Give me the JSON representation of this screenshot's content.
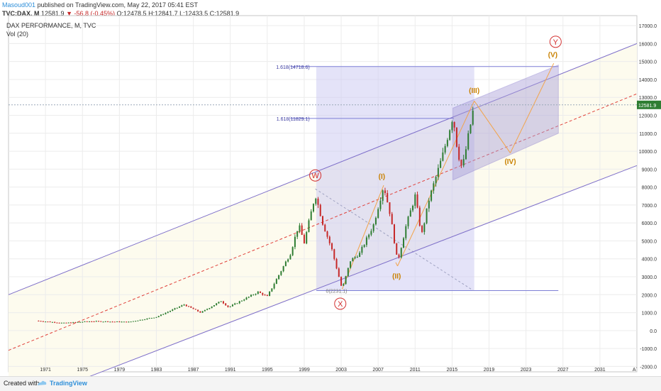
{
  "header": {
    "author": "Masoud001",
    "published": "published on TradingView.com, May 22, 2017 05:41 EST",
    "symbol": "TVC:DAX, M",
    "last": "12581.9",
    "change": "▼ -56.8 (-0.45%)",
    "ohlc": "O:12478.5  H:12841.7  L:12433.5  C:12581.9"
  },
  "legend": {
    "title": "DAX PERFORMANCE, M, TVC",
    "indicator": "Vol (20)"
  },
  "footer": {
    "created_with": "Created with",
    "brand": "TradingView"
  },
  "colors": {
    "channel": "#7e6fc9",
    "fill": "#fdfbee",
    "box": "#c9c7f1",
    "up": "#2e7d32",
    "down": "#c62828",
    "wave": "#f2a44b",
    "wave_text": "#c98100",
    "circle": "#d32f2f",
    "midline": "#e0403a"
  },
  "chart_data": {
    "type": "candlestick",
    "title": "DAX PERFORMANCE, M, TVC",
    "x_ticks": [
      "1971",
      "1975",
      "1979",
      "1983",
      "1987",
      "1991",
      "1995",
      "1999",
      "2003",
      "2007",
      "2011",
      "2015",
      "2019",
      "2023",
      "2027",
      "2031",
      "A"
    ],
    "y_ticks": [
      "17000.0",
      "16000.0",
      "15000.0",
      "14000.0",
      "13000.0",
      "12000.0",
      "11000.0",
      "10000.0",
      "9000.0",
      "8000.0",
      "7000.0",
      "6000.0",
      "5000.0",
      "4000.0",
      "3000.0",
      "2000.0",
      "1000.0",
      "0.0",
      "-1000.0",
      "-2000.0"
    ],
    "ylim": [
      -2300,
      17400
    ],
    "xlim": [
      1967,
      2035
    ],
    "last_price": "12581.9",
    "price_path": [
      [
        1970,
        550
      ],
      [
        1973,
        420
      ],
      [
        1976,
        520
      ],
      [
        1980,
        480
      ],
      [
        1983,
        760
      ],
      [
        1986,
        1450
      ],
      [
        1987.8,
        1000
      ],
      [
        1990,
        1650
      ],
      [
        1990.8,
        1300
      ],
      [
        1994,
        2150
      ],
      [
        1995,
        1900
      ],
      [
        1997.5,
        4300
      ],
      [
        1998.4,
        5900
      ],
      [
        1999,
        4900
      ],
      [
        2000.2,
        7600
      ],
      [
        2001,
        6000
      ],
      [
        2002,
        4500
      ],
      [
        2003.1,
        2300
      ],
      [
        2004,
        3900
      ],
      [
        2005,
        4300
      ],
      [
        2006.5,
        5900
      ],
      [
        2007.6,
        8100
      ],
      [
        2008.3,
        6500
      ],
      [
        2009.1,
        3800
      ],
      [
        2010,
        5800
      ],
      [
        2011,
        7500
      ],
      [
        2011.7,
        5300
      ],
      [
        2012.5,
        7300
      ],
      [
        2014,
        9800
      ],
      [
        2015.1,
        12000
      ],
      [
        2015.6,
        10000
      ],
      [
        2016.1,
        9000
      ],
      [
        2017.4,
        12600
      ]
    ],
    "annotations": [
      "1.618(14718.6)",
      "1.618(11829.1)",
      "0(2231.1)"
    ],
    "wave_labels": [
      "W",
      "X",
      "Y",
      "(I)",
      "(II)",
      "(III)",
      "(IV)",
      "(V)"
    ]
  }
}
